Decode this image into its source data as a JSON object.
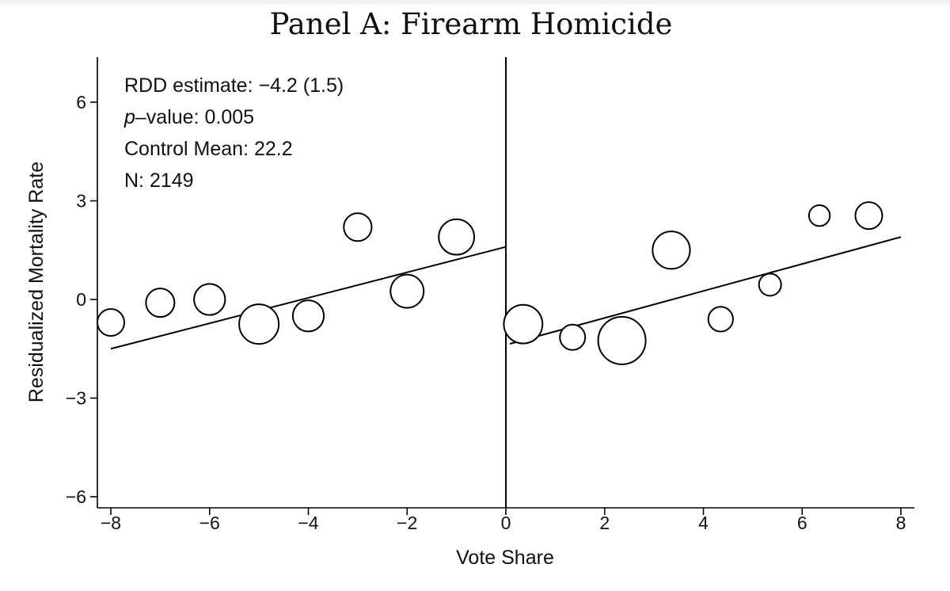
{
  "chart_data": {
    "type": "scatter",
    "title": "Panel A: Firearm Homicide",
    "xlabel": "Vote Share",
    "ylabel": "Residualized Mortality Rate",
    "xlim": [
      -8,
      8
    ],
    "ylim": [
      -6,
      7
    ],
    "x_ticks": [
      -8,
      -6,
      -4,
      -2,
      0,
      2,
      4,
      6,
      8
    ],
    "x_tick_labels": [
      "−8",
      "−6",
      "−4",
      "−2",
      "0",
      "2",
      "4",
      "6",
      "8"
    ],
    "y_ticks": [
      -6,
      -3,
      0,
      3,
      6
    ],
    "y_tick_labels": [
      "−6",
      "−3",
      "0",
      "3",
      "6"
    ],
    "cutoff": 0,
    "annotations": [
      {
        "prefix": "",
        "italic": "",
        "text": "RDD estimate: −4.2 (1.5)"
      },
      {
        "prefix": "",
        "italic": "p",
        "text": "–value: 0.005"
      },
      {
        "prefix": "",
        "italic": "",
        "text": "Control Mean: 22.2"
      },
      {
        "prefix": "",
        "italic": "",
        "text": "N: 2149"
      }
    ],
    "points": [
      {
        "x": -8.0,
        "y": -0.7,
        "size": 0.55
      },
      {
        "x": -7.0,
        "y": -0.1,
        "size": 0.6
      },
      {
        "x": -6.0,
        "y": 0.0,
        "size": 0.68
      },
      {
        "x": -5.0,
        "y": -0.75,
        "size": 0.95
      },
      {
        "x": -4.0,
        "y": -0.5,
        "size": 0.68
      },
      {
        "x": -3.0,
        "y": 2.2,
        "size": 0.58
      },
      {
        "x": -2.0,
        "y": 0.25,
        "size": 0.75
      },
      {
        "x": -1.0,
        "y": 1.9,
        "size": 0.82
      },
      {
        "x": 0.35,
        "y": -0.75,
        "size": 0.92
      },
      {
        "x": 1.35,
        "y": -1.15,
        "size": 0.5
      },
      {
        "x": 2.35,
        "y": -1.25,
        "size": 1.2
      },
      {
        "x": 3.35,
        "y": 1.5,
        "size": 0.88
      },
      {
        "x": 4.35,
        "y": -0.6,
        "size": 0.48
      },
      {
        "x": 5.35,
        "y": 0.45,
        "size": 0.4
      },
      {
        "x": 6.35,
        "y": 2.55,
        "size": 0.36
      },
      {
        "x": 7.35,
        "y": 2.55,
        "size": 0.55
      }
    ],
    "fit_lines": [
      {
        "side": "left",
        "x": [
          -8.0,
          0.0
        ],
        "y": [
          -1.5,
          1.6
        ]
      },
      {
        "side": "right",
        "x": [
          0.08,
          8.0
        ],
        "y": [
          -1.35,
          1.9
        ]
      }
    ],
    "grid": false,
    "legend": "none"
  }
}
